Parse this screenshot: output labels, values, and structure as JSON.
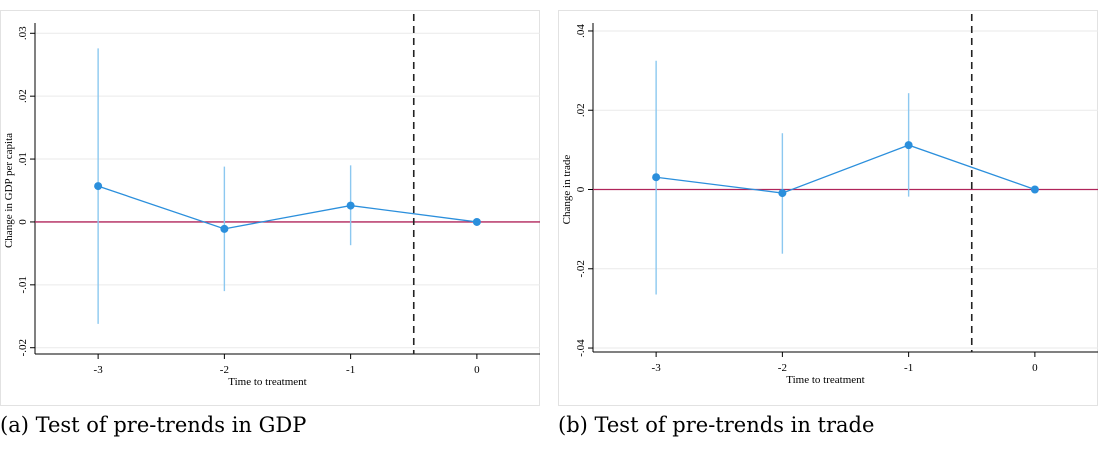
{
  "chart_data": [
    {
      "type": "scatter",
      "caption": "(a) Test of pre-trends in GDP",
      "xlabel": "Time to treatment",
      "ylabel": "Change in GDP per capita",
      "xlim": [
        -3.5,
        0.5
      ],
      "ylim": [
        -0.021,
        0.031
      ],
      "xticks": [
        -3,
        -2,
        -1,
        0
      ],
      "xtick_labels": [
        "-3",
        "-2",
        "-1",
        "0"
      ],
      "yticks": [
        -0.02,
        -0.01,
        0,
        0.01,
        0.02,
        0.03
      ],
      "ytick_labels": [
        "-.02",
        "-.01",
        "0",
        ".01",
        ".02",
        ".03"
      ],
      "vline_x": -0.5,
      "hline_y": 0,
      "grid": true,
      "series": [
        {
          "x": [
            -3,
            -2,
            -1,
            0
          ],
          "y": [
            0.0057,
            -0.0011,
            0.0026,
            0.0
          ],
          "ci_low": [
            -0.0162,
            -0.011,
            -0.0037,
            0.0
          ],
          "ci_high": [
            0.0276,
            0.0088,
            0.009,
            0.0
          ]
        }
      ],
      "colors": {
        "line": "#2b8fdc",
        "ci": "#8cc8f0",
        "zero": "#b0245a"
      }
    },
    {
      "type": "scatter",
      "caption": "(b) Test of pre-trends in trade",
      "xlabel": "Time to treatment",
      "ylabel": "Change in trade",
      "xlim": [
        -3.5,
        0.5
      ],
      "ylim": [
        -0.041,
        0.041
      ],
      "xticks": [
        -3,
        -2,
        -1,
        0
      ],
      "xtick_labels": [
        "-3",
        "-2",
        "-1",
        "0"
      ],
      "yticks": [
        -0.04,
        -0.02,
        0,
        0.02,
        0.04
      ],
      "ytick_labels": [
        "-.04",
        "-.02",
        "0",
        ".02",
        ".04"
      ],
      "vline_x": -0.5,
      "hline_y": 0,
      "grid": true,
      "series": [
        {
          "x": [
            -3,
            -2,
            -1,
            0
          ],
          "y": [
            0.0031,
            -0.0009,
            0.0112,
            0.0
          ],
          "ci_low": [
            -0.0265,
            -0.0162,
            -0.0018,
            0.0
          ],
          "ci_high": [
            0.0325,
            0.0142,
            0.0243,
            0.0
          ]
        }
      ],
      "colors": {
        "line": "#2b8fdc",
        "ci": "#8cc8f0",
        "zero": "#b0245a"
      }
    }
  ]
}
